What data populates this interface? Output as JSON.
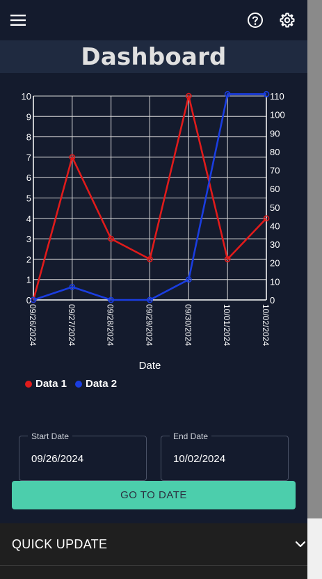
{
  "header": {
    "menu_icon": "hamburger-menu-icon",
    "help_icon": "help-circle-icon",
    "settings_icon": "gear-icon"
  },
  "page": {
    "title": "Dashboard"
  },
  "chart_data": {
    "type": "line",
    "categories": [
      "09/26/2024",
      "09/27/2024",
      "09/28/2024",
      "09/29/2024",
      "09/30/2024",
      "10/01/2024",
      "10/02/2024"
    ],
    "xlabel": "Date",
    "y_left": {
      "min": 0,
      "max": 10,
      "ticks": [
        0,
        1,
        2,
        3,
        4,
        5,
        6,
        7,
        8,
        9,
        10
      ]
    },
    "y_right": {
      "min": 0,
      "max": 110,
      "ticks": [
        0,
        10,
        20,
        30,
        40,
        50,
        60,
        70,
        80,
        90,
        100,
        110
      ]
    },
    "grid": true,
    "legend": "bottom-left",
    "series": [
      {
        "name": "Data 1",
        "axis": "left",
        "color": "#e01b1b",
        "values": [
          0,
          7,
          3,
          2,
          10,
          2,
          4
        ]
      },
      {
        "name": "Data 2",
        "axis": "right",
        "color": "#1a3de0",
        "values": [
          0,
          7,
          0,
          0,
          11,
          111,
          111
        ]
      }
    ]
  },
  "legend": [
    {
      "label": "Data 1",
      "color": "#e01b1b"
    },
    {
      "label": "Data 2",
      "color": "#1a3de0"
    }
  ],
  "date_range": {
    "start_label": "Start Date",
    "start_value": "09/26/2024",
    "end_label": "End Date",
    "end_value": "10/02/2024"
  },
  "actions": {
    "go_label": "GO TO DATE"
  },
  "quick_update": {
    "title": "QUICK UPDATE",
    "icon": "chevron-down-icon"
  },
  "colors": {
    "background": "#141b2d",
    "title_bar": "#1f2a40",
    "accent": "#4cceac"
  }
}
